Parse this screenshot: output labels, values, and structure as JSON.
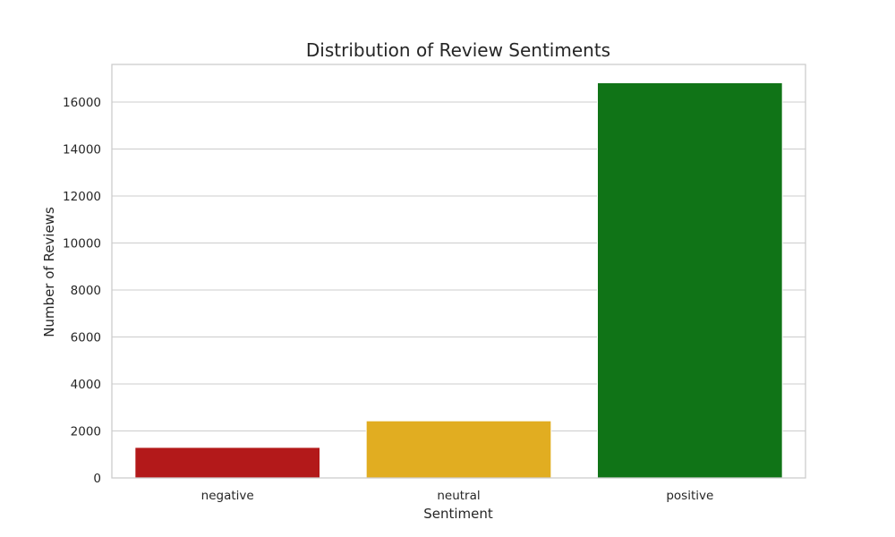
{
  "chart_data": {
    "type": "bar",
    "title": "Distribution of Review Sentiments",
    "xlabel": "Sentiment",
    "ylabel": "Number of Reviews",
    "categories": [
      "negative",
      "neutral",
      "positive"
    ],
    "values": [
      1300,
      2430,
      16820
    ],
    "colors": [
      "#b3191a",
      "#e1ad21",
      "#107417"
    ],
    "ylim": [
      0,
      17600
    ],
    "yticks": [
      0,
      2000,
      4000,
      6000,
      8000,
      10000,
      12000,
      14000,
      16000
    ],
    "grid": true,
    "grid_axis": "y",
    "legend": "none"
  }
}
